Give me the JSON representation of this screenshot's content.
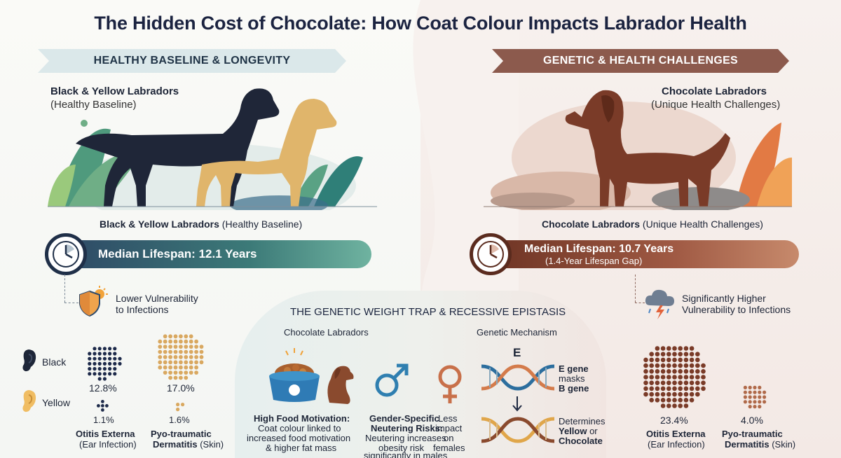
{
  "title": "The Hidden Cost of Chocolate: How Coat Colour Impacts Labrador Health",
  "left": {
    "banner": "HEALTHY BASELINE & LONGEVITY",
    "dog_label_title": "Black & Yellow Labradors",
    "dog_label_sub": "(Healthy Baseline)",
    "caption_bold": "Black & Yellow Labradors",
    "caption_rest": " (Healthy Baseline)",
    "lifespan": "Median Lifespan: 12.1 Years",
    "vulnerability_line1": "Lower Vulnerability",
    "vulnerability_line2": "to Infections",
    "legend_black": "Black",
    "legend_yellow": "Yellow",
    "otitis_pct_black": "12.8%",
    "otitis_pct_yellow": "1.1%",
    "pyo_pct_black": "17.0%",
    "pyo_pct_yellow": "1.6%",
    "otitis_label_bold": "Otitis Externa",
    "otitis_label_sub": "(Ear Infection)",
    "pyo_label_bold": "Pyo-traumatic",
    "pyo_label_bold2": "Dermatitis",
    "pyo_label_sub": " (Skin)"
  },
  "right": {
    "banner": "GENETIC & HEALTH CHALLENGES",
    "dog_label_title": "Chocolate Labradors",
    "dog_label_sub": "(Unique Health Challenges)",
    "caption_bold": "Chocolate Labradors",
    "caption_rest": " (Unique Health Challenges)",
    "lifespan": "Median Lifespan: 10.7 Years",
    "gap": "(1.4-Year Lifespan Gap)",
    "vulnerability_line1": "Significantly Higher",
    "vulnerability_line2": "Vulnerability to Infections",
    "otitis_pct": "23.4%",
    "pyo_pct": "4.0%",
    "otitis_label_bold": "Otitis Externa",
    "otitis_label_sub": "(Ear Infection)",
    "pyo_label_bold": "Pyo-traumatic",
    "pyo_label_bold2": "Dermatitis",
    "pyo_label_sub": " (Skin)"
  },
  "center": {
    "title": "THE GENETIC WEIGHT TRAP & RECESSIVE EPISTASIS",
    "col_left": "Chocolate Labradors",
    "col_right": "Genetic Mechanism",
    "food_bold": "High Food Motivation:",
    "food_line1": "Coat colour linked to",
    "food_line2": "increased food motivation",
    "food_line3": "& higher fat mass",
    "gender_bold1": "Gender-Specific",
    "gender_bold2": "Neutering Risks:",
    "gender_line1": "Neutering increases",
    "gender_line2": "obesity risk",
    "gender_line3": "significantly in males",
    "female_line1": "Less",
    "female_line2": "impact",
    "female_line3": "on",
    "female_line4": "females",
    "gene_letter": "E",
    "gene_line1": "E gene",
    "gene_line2": "masks",
    "gene_line3": "B gene",
    "determines_line1": "Determines",
    "determines_line2": "Yellow",
    "determines_or": " or",
    "determines_line3": "Chocolate"
  },
  "colors": {
    "navy": "#1b2340",
    "teal": "#3c7a78",
    "brown": "#8c5a4d",
    "dot_black": "#1d2a4a",
    "dot_yellow": "#d9a860",
    "dot_choc": "#7a3b28"
  },
  "icons": [
    "clock-icon",
    "shield-sun-icon",
    "storm-cloud-icon",
    "ear-icon",
    "food-bowl-icon",
    "male-symbol-icon",
    "female-symbol-icon",
    "dna-icon",
    "arrow-down-icon"
  ]
}
